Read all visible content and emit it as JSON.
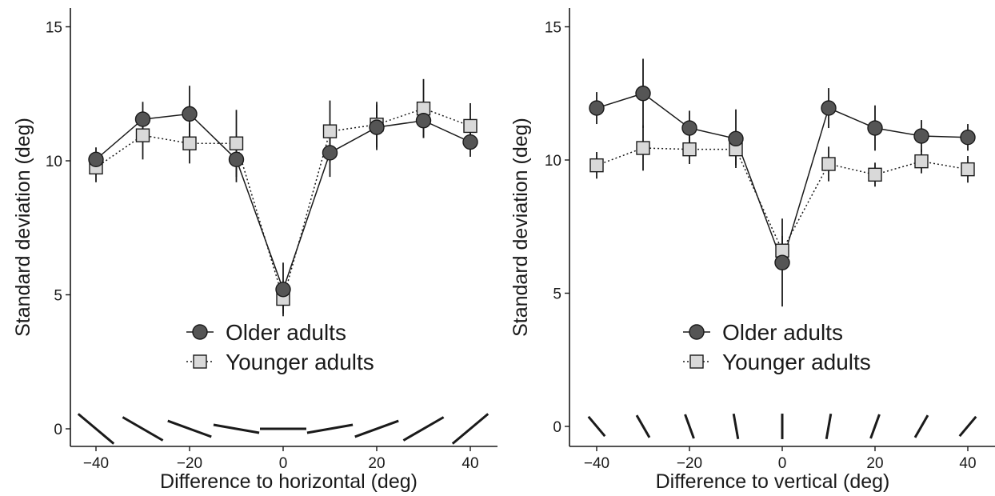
{
  "colors": {
    "older": "#555555",
    "younger": "#d9d9d9",
    "line": "#1a1a1a"
  },
  "chart_data": [
    {
      "type": "line",
      "panel": "left",
      "xlabel": "Difference to horizontal (deg)",
      "ylabel": "Standard deviation (deg)",
      "xlim": [
        -45,
        45
      ],
      "ylim": [
        0,
        15
      ],
      "xticks": [
        -40,
        -20,
        0,
        20,
        40
      ],
      "xtick_labels": [
        "−40",
        "−20",
        "0",
        "20",
        "40"
      ],
      "yticks": [
        0,
        5,
        10,
        15
      ],
      "ytick_labels": [
        "0",
        "5",
        "10",
        "15"
      ],
      "grid": false,
      "legend_position": "bottom-center",
      "x": [
        -40,
        -30,
        -20,
        -10,
        0,
        10,
        20,
        30,
        40
      ],
      "series": [
        {
          "name": "Older adults",
          "marker": "circle",
          "line": "solid",
          "values": [
            10.05,
            11.55,
            11.75,
            10.05,
            5.2,
            10.3,
            11.25,
            11.5,
            10.7
          ],
          "error": [
            0.45,
            0.65,
            1.05,
            0.85,
            1.0,
            0.9,
            0.85,
            0.65,
            0.55
          ]
        },
        {
          "name": "Younger adults",
          "marker": "square",
          "line": "dotted",
          "values": [
            9.75,
            10.95,
            10.65,
            10.65,
            4.85,
            11.1,
            11.35,
            11.95,
            11.3
          ],
          "error": [
            0.55,
            0.9,
            0.75,
            1.25,
            0.55,
            1.15,
            0.85,
            1.1,
            0.85
          ]
        }
      ],
      "stimulus_orientations": [
        -40,
        -30,
        -20,
        -10,
        0,
        10,
        20,
        30,
        40
      ]
    },
    {
      "type": "line",
      "panel": "right",
      "xlabel": "Difference to vertical (deg)",
      "ylabel": "Standard deviation (deg)",
      "xlim": [
        -45,
        45
      ],
      "ylim": [
        0,
        15
      ],
      "xticks": [
        -40,
        -20,
        0,
        20,
        40
      ],
      "xtick_labels": [
        "−40",
        "−20",
        "0",
        "20",
        "40"
      ],
      "yticks": [
        0,
        5,
        10,
        15
      ],
      "ytick_labels": [
        "0",
        "5",
        "10",
        "15"
      ],
      "grid": false,
      "legend_position": "bottom-center",
      "x": [
        -40,
        -30,
        -20,
        -10,
        0,
        10,
        20,
        30,
        40
      ],
      "series": [
        {
          "name": "Older adults",
          "marker": "circle",
          "line": "solid",
          "values": [
            11.95,
            12.5,
            11.2,
            10.8,
            6.15,
            11.95,
            11.2,
            10.9,
            10.85
          ],
          "error": [
            0.6,
            1.3,
            0.65,
            1.1,
            1.65,
            0.75,
            0.85,
            0.6,
            0.5
          ]
        },
        {
          "name": "Younger adults",
          "marker": "square",
          "line": "dotted",
          "values": [
            9.8,
            10.45,
            10.4,
            10.4,
            6.6,
            9.85,
            9.45,
            9.95,
            9.65
          ],
          "error": [
            0.5,
            0.85,
            0.55,
            0.6,
            0.55,
            0.65,
            0.45,
            0.45,
            0.5
          ]
        }
      ],
      "stimulus_orientations": [
        -40,
        -30,
        -20,
        -10,
        0,
        10,
        20,
        30,
        40
      ]
    }
  ]
}
